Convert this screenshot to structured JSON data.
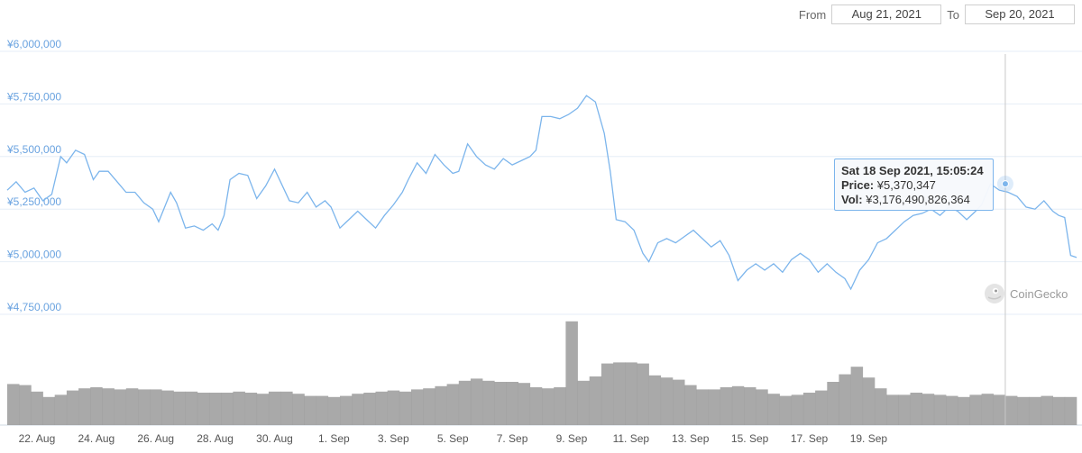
{
  "range": {
    "from_label": "From",
    "from_value": "Aug 21, 2021",
    "to_label": "To",
    "to_value": "Sep 20, 2021"
  },
  "tooltip": {
    "date": "Sat 18 Sep 2021, 15:05:24",
    "price_label": "Price:",
    "price_value": "¥5,370,347",
    "vol_label": "Vol:",
    "vol_value": "¥3,176,490,826,364"
  },
  "watermark": "CoinGecko",
  "colors": {
    "line": "#7cb5ec",
    "volume": "#9a9a9a",
    "axis_text": "#6aa3e0",
    "grid": "#e6eef7"
  },
  "chart_data": {
    "type": "line",
    "currency": "¥",
    "ylim": [
      4750000,
      6000000
    ],
    "y_ticks": [
      "¥4,750,000",
      "¥5,000,000",
      "¥5,250,000",
      "¥5,500,000",
      "¥5,750,000",
      "¥6,000,000"
    ],
    "y_tick_values": [
      4750000,
      5000000,
      5250000,
      5500000,
      5750000,
      6000000
    ],
    "x_ticks": [
      "22. Aug",
      "24. Aug",
      "26. Aug",
      "28. Aug",
      "30. Aug",
      "1. Sep",
      "3. Sep",
      "5. Sep",
      "7. Sep",
      "9. Sep",
      "11. Sep",
      "13. Sep",
      "15. Sep",
      "17. Sep",
      "19. Sep"
    ],
    "x_tick_days": [
      1,
      3,
      5,
      7,
      9,
      11,
      13,
      15,
      17,
      19,
      21,
      23,
      25,
      27,
      29
    ],
    "series": [
      {
        "values": [
          [
            0.0,
            5340000
          ],
          [
            0.3,
            5380000
          ],
          [
            0.6,
            5330000
          ],
          [
            0.9,
            5350000
          ],
          [
            1.2,
            5290000
          ],
          [
            1.5,
            5320000
          ],
          [
            1.8,
            5500000
          ],
          [
            2.0,
            5470000
          ],
          [
            2.3,
            5530000
          ],
          [
            2.6,
            5510000
          ],
          [
            2.9,
            5390000
          ],
          [
            3.1,
            5430000
          ],
          [
            3.4,
            5430000
          ],
          [
            3.7,
            5380000
          ],
          [
            4.0,
            5330000
          ],
          [
            4.3,
            5330000
          ],
          [
            4.6,
            5280000
          ],
          [
            4.9,
            5250000
          ],
          [
            5.1,
            5190000
          ],
          [
            5.3,
            5260000
          ],
          [
            5.5,
            5330000
          ],
          [
            5.7,
            5280000
          ],
          [
            6.0,
            5160000
          ],
          [
            6.3,
            5170000
          ],
          [
            6.6,
            5150000
          ],
          [
            6.9,
            5180000
          ],
          [
            7.1,
            5150000
          ],
          [
            7.3,
            5220000
          ],
          [
            7.5,
            5390000
          ],
          [
            7.8,
            5420000
          ],
          [
            8.1,
            5410000
          ],
          [
            8.4,
            5300000
          ],
          [
            8.7,
            5360000
          ],
          [
            9.0,
            5440000
          ],
          [
            9.2,
            5380000
          ],
          [
            9.5,
            5290000
          ],
          [
            9.8,
            5280000
          ],
          [
            10.1,
            5330000
          ],
          [
            10.4,
            5260000
          ],
          [
            10.7,
            5290000
          ],
          [
            10.9,
            5260000
          ],
          [
            11.2,
            5160000
          ],
          [
            11.5,
            5200000
          ],
          [
            11.8,
            5240000
          ],
          [
            12.1,
            5200000
          ],
          [
            12.4,
            5160000
          ],
          [
            12.7,
            5220000
          ],
          [
            13.0,
            5270000
          ],
          [
            13.3,
            5330000
          ],
          [
            13.5,
            5390000
          ],
          [
            13.8,
            5470000
          ],
          [
            14.1,
            5420000
          ],
          [
            14.4,
            5510000
          ],
          [
            14.7,
            5460000
          ],
          [
            15.0,
            5420000
          ],
          [
            15.2,
            5430000
          ],
          [
            15.5,
            5560000
          ],
          [
            15.8,
            5500000
          ],
          [
            16.1,
            5460000
          ],
          [
            16.4,
            5440000
          ],
          [
            16.7,
            5490000
          ],
          [
            17.0,
            5460000
          ],
          [
            17.3,
            5480000
          ],
          [
            17.6,
            5500000
          ],
          [
            17.8,
            5530000
          ],
          [
            18.0,
            5690000
          ],
          [
            18.3,
            5690000
          ],
          [
            18.6,
            5680000
          ],
          [
            18.9,
            5700000
          ],
          [
            19.2,
            5730000
          ],
          [
            19.5,
            5790000
          ],
          [
            19.8,
            5760000
          ],
          [
            20.1,
            5610000
          ],
          [
            20.3,
            5430000
          ],
          [
            20.5,
            5200000
          ],
          [
            20.8,
            5190000
          ],
          [
            21.1,
            5150000
          ],
          [
            21.4,
            5040000
          ],
          [
            21.6,
            5000000
          ],
          [
            21.9,
            5090000
          ],
          [
            22.2,
            5110000
          ],
          [
            22.5,
            5090000
          ],
          [
            22.8,
            5120000
          ],
          [
            23.1,
            5150000
          ],
          [
            23.4,
            5110000
          ],
          [
            23.7,
            5070000
          ],
          [
            24.0,
            5100000
          ],
          [
            24.3,
            5030000
          ],
          [
            24.6,
            4910000
          ],
          [
            24.9,
            4960000
          ],
          [
            25.2,
            4990000
          ],
          [
            25.5,
            4960000
          ],
          [
            25.8,
            4990000
          ],
          [
            26.1,
            4950000
          ],
          [
            26.4,
            5010000
          ],
          [
            26.7,
            5040000
          ],
          [
            27.0,
            5010000
          ],
          [
            27.3,
            4950000
          ],
          [
            27.6,
            4990000
          ],
          [
            27.9,
            4950000
          ],
          [
            28.2,
            4920000
          ],
          [
            28.4,
            4870000
          ],
          [
            28.7,
            4960000
          ],
          [
            29.0,
            5010000
          ],
          [
            29.3,
            5090000
          ],
          [
            29.6,
            5110000
          ],
          [
            29.9,
            5150000
          ],
          [
            30.2,
            5190000
          ],
          [
            30.5,
            5220000
          ],
          [
            30.8,
            5230000
          ],
          [
            31.1,
            5250000
          ],
          [
            31.4,
            5220000
          ],
          [
            31.7,
            5260000
          ],
          [
            32.0,
            5240000
          ],
          [
            32.3,
            5200000
          ],
          [
            32.6,
            5240000
          ],
          [
            32.8,
            5270000
          ],
          [
            33.1,
            5370000
          ],
          [
            33.4,
            5340000
          ],
          [
            33.7,
            5330000
          ],
          [
            34.0,
            5310000
          ],
          [
            34.3,
            5260000
          ],
          [
            34.6,
            5250000
          ],
          [
            34.9,
            5290000
          ],
          [
            35.2,
            5240000
          ],
          [
            35.4,
            5220000
          ],
          [
            35.6,
            5210000
          ],
          [
            35.8,
            5030000
          ],
          [
            36.0,
            5020000
          ]
        ]
      }
    ],
    "volume": {
      "note": "traded volume bars (relative)",
      "values": [
        0.38,
        0.37,
        0.31,
        0.26,
        0.28,
        0.32,
        0.34,
        0.35,
        0.34,
        0.33,
        0.34,
        0.33,
        0.33,
        0.32,
        0.31,
        0.31,
        0.3,
        0.3,
        0.3,
        0.31,
        0.3,
        0.29,
        0.31,
        0.31,
        0.29,
        0.27,
        0.27,
        0.26,
        0.27,
        0.29,
        0.3,
        0.31,
        0.32,
        0.31,
        0.33,
        0.34,
        0.36,
        0.38,
        0.41,
        0.43,
        0.41,
        0.4,
        0.4,
        0.39,
        0.35,
        0.34,
        0.35,
        0.96,
        0.41,
        0.45,
        0.57,
        0.58,
        0.58,
        0.57,
        0.46,
        0.44,
        0.42,
        0.37,
        0.33,
        0.33,
        0.35,
        0.36,
        0.35,
        0.33,
        0.29,
        0.27,
        0.28,
        0.3,
        0.32,
        0.4,
        0.47,
        0.54,
        0.44,
        0.34,
        0.28,
        0.28,
        0.3,
        0.29,
        0.28,
        0.27,
        0.26,
        0.28,
        0.29,
        0.28,
        0.27,
        0.26,
        0.26,
        0.27,
        0.26,
        0.26
      ]
    },
    "hover": {
      "x_day": 33.6,
      "price": 5370347
    }
  }
}
